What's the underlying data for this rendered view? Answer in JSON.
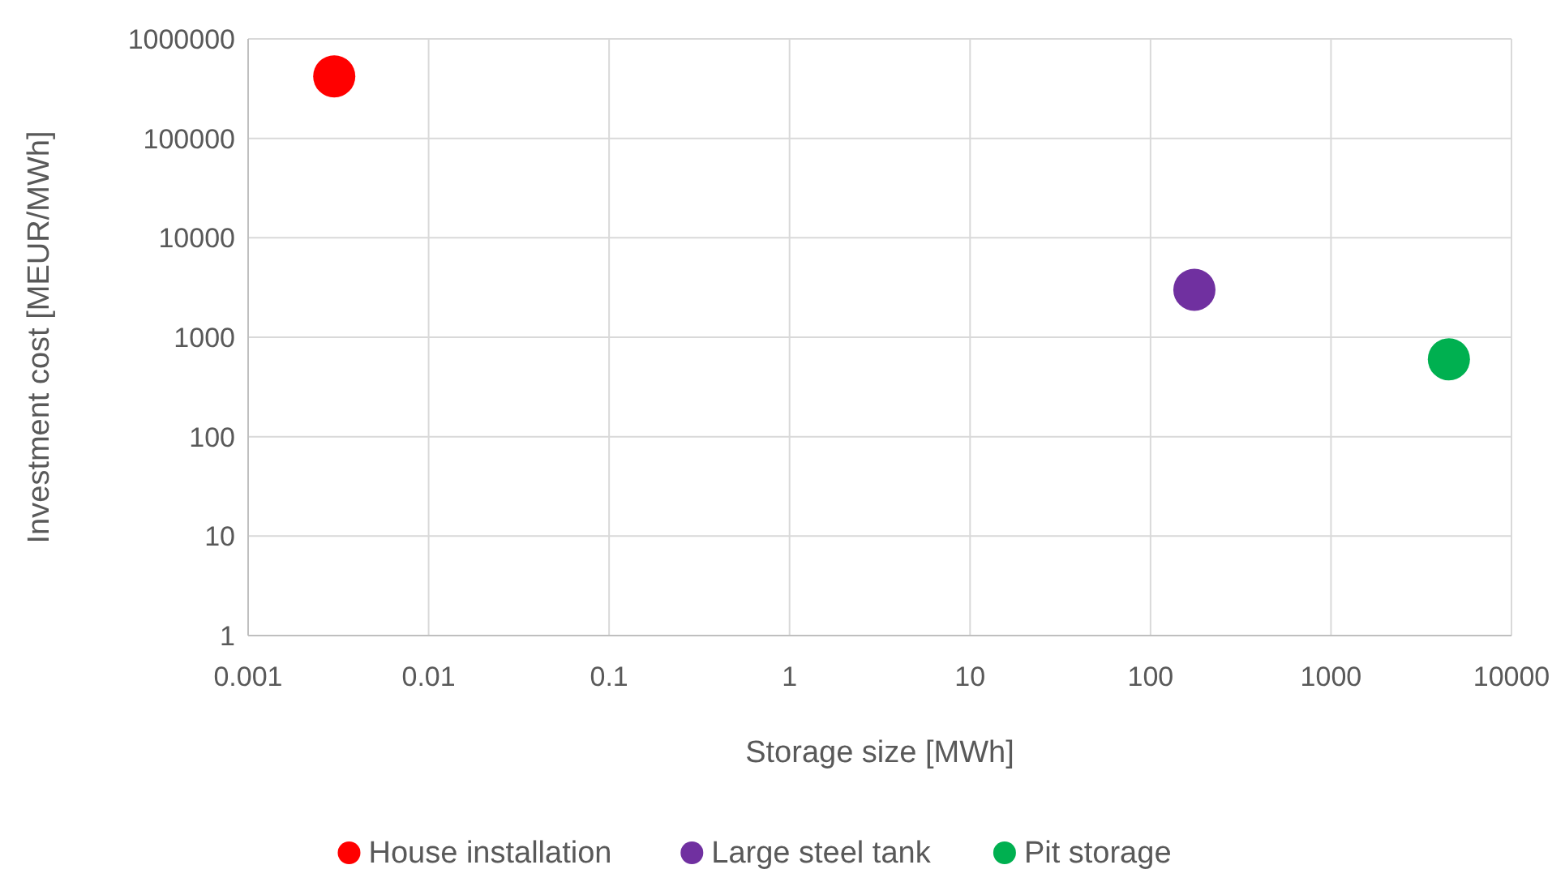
{
  "chart_data": {
    "type": "scatter",
    "xlabel": "Storage size [MWh]",
    "ylabel": "Investment cost [MEUR/MWh]",
    "log": "xy",
    "grid": true,
    "legend": "bottom",
    "marker": "circle",
    "xlim": [
      0.001,
      10000
    ],
    "xticks": [
      0.001,
      0.01,
      0.1,
      1,
      10,
      100,
      1000,
      10000
    ],
    "ylim": [
      1,
      1000000
    ],
    "yticks": [
      1,
      10,
      100,
      1000,
      10000,
      100000,
      1000000
    ],
    "series": [
      {
        "name": "House installation",
        "color": "#ff0000",
        "x": [
          0.003
        ],
        "values": [
          420000
        ]
      },
      {
        "name": "Large steel tank",
        "color": "#7030a0",
        "x": [
          175
        ],
        "values": [
          3000
        ]
      },
      {
        "name": "Pit storage",
        "color": "#00b050",
        "x": [
          4500
        ],
        "values": [
          600
        ]
      }
    ]
  }
}
